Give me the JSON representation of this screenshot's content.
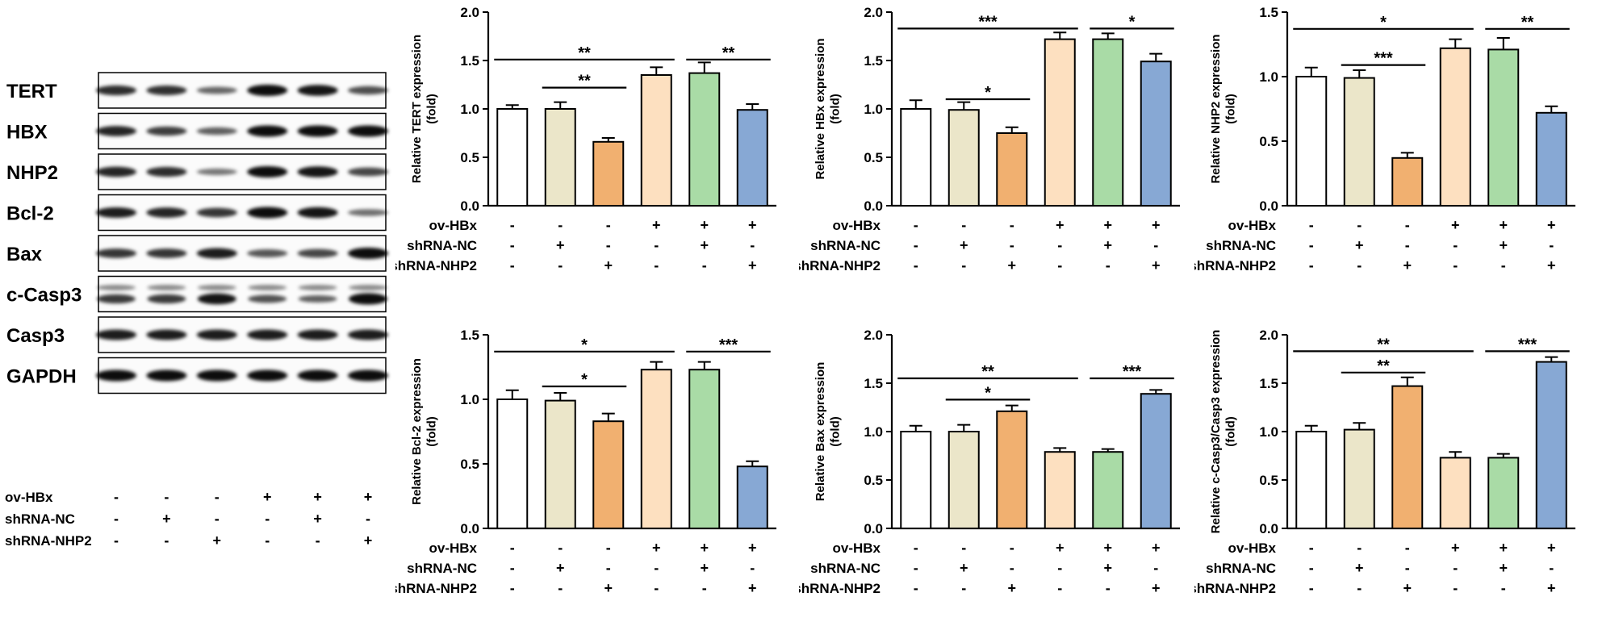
{
  "bar_colors": [
    "#ffffff",
    "#ebe6c9",
    "#f1b070",
    "#fde0c0",
    "#a9dba6",
    "#87a8d4"
  ],
  "treatments": {
    "rows": [
      {
        "label": "ov-HBx",
        "signs": [
          "-",
          "-",
          "-",
          "+",
          "+",
          "+"
        ]
      },
      {
        "label": "shRNA-NC",
        "signs": [
          "-",
          "+",
          "-",
          "-",
          "+",
          "-"
        ]
      },
      {
        "label": "shRNA-NHP2",
        "signs": [
          "-",
          "-",
          "+",
          "-",
          "-",
          "+"
        ]
      }
    ]
  },
  "blot": {
    "lanes": 6,
    "proteins": [
      {
        "name": "TERT",
        "intensity": [
          0.8,
          0.78,
          0.45,
          1.0,
          0.95,
          0.6
        ]
      },
      {
        "name": "HBX",
        "intensity": [
          0.85,
          0.7,
          0.5,
          1.0,
          1.0,
          1.0
        ]
      },
      {
        "name": "NHP2",
        "intensity": [
          0.85,
          0.8,
          0.35,
          1.0,
          0.95,
          0.65
        ]
      },
      {
        "name": "Bcl-2",
        "intensity": [
          0.9,
          0.85,
          0.75,
          1.0,
          0.95,
          0.4
        ]
      },
      {
        "name": "Bax",
        "intensity": [
          0.75,
          0.75,
          0.9,
          0.55,
          0.65,
          1.0
        ]
      },
      {
        "name": "c-Casp3",
        "intensity": [
          0.7,
          0.7,
          0.95,
          0.55,
          0.45,
          1.0
        ]
      },
      {
        "name": "Casp3",
        "intensity": [
          0.9,
          0.9,
          0.9,
          0.9,
          0.9,
          0.9
        ]
      },
      {
        "name": "GAPDH",
        "intensity": [
          1.0,
          1.0,
          1.0,
          1.0,
          1.0,
          1.0
        ]
      }
    ]
  },
  "chart_data": [
    {
      "type": "bar",
      "ylabel": "Relative TERT expression (fold)",
      "ylim": [
        0,
        2.0
      ],
      "yticks": [
        "0.0",
        "0.5",
        "1.0",
        "1.5",
        "2.0"
      ],
      "values": [
        1.0,
        1.0,
        0.66,
        1.35,
        1.37,
        0.99
      ],
      "errors": [
        0.04,
        0.07,
        0.04,
        0.08,
        0.11,
        0.06
      ],
      "significance": [
        {
          "from": 0,
          "to": 3,
          "y": 1.51,
          "label": "**"
        },
        {
          "from": 1,
          "to": 2,
          "y": 1.22,
          "label": "**"
        },
        {
          "from": 4,
          "to": 5,
          "y": 1.51,
          "label": "**"
        }
      ]
    },
    {
      "type": "bar",
      "ylabel": "Relative HBx expression (fold)",
      "ylim": [
        0,
        2.0
      ],
      "yticks": [
        "0.0",
        "0.5",
        "1.0",
        "1.5",
        "2.0"
      ],
      "values": [
        1.0,
        0.99,
        0.75,
        1.72,
        1.72,
        1.49
      ],
      "errors": [
        0.09,
        0.08,
        0.06,
        0.07,
        0.06,
        0.08
      ],
      "significance": [
        {
          "from": 0,
          "to": 3,
          "y": 1.83,
          "label": "***"
        },
        {
          "from": 1,
          "to": 2,
          "y": 1.1,
          "label": "*"
        },
        {
          "from": 4,
          "to": 5,
          "y": 1.83,
          "label": "*"
        }
      ]
    },
    {
      "type": "bar",
      "ylabel": "Relative NHP2 expression (fold)",
      "ylim": [
        0,
        1.5
      ],
      "yticks": [
        "0.0",
        "0.5",
        "1.0",
        "1.5"
      ],
      "values": [
        1.0,
        0.99,
        0.37,
        1.22,
        1.21,
        0.72
      ],
      "errors": [
        0.07,
        0.06,
        0.04,
        0.07,
        0.09,
        0.05
      ],
      "significance": [
        {
          "from": 0,
          "to": 3,
          "y": 1.37,
          "label": "*"
        },
        {
          "from": 1,
          "to": 2,
          "y": 1.09,
          "label": "***"
        },
        {
          "from": 4,
          "to": 5,
          "y": 1.37,
          "label": "**"
        }
      ]
    },
    {
      "type": "bar",
      "ylabel": "Relative Bcl-2 expression (fold)",
      "ylim": [
        0,
        1.5
      ],
      "yticks": [
        "0.0",
        "0.5",
        "1.0",
        "1.5"
      ],
      "values": [
        1.0,
        0.99,
        0.83,
        1.23,
        1.23,
        0.48
      ],
      "errors": [
        0.07,
        0.06,
        0.06,
        0.06,
        0.06,
        0.04
      ],
      "significance": [
        {
          "from": 0,
          "to": 3,
          "y": 1.37,
          "label": "*"
        },
        {
          "from": 1,
          "to": 2,
          "y": 1.1,
          "label": "*"
        },
        {
          "from": 4,
          "to": 5,
          "y": 1.37,
          "label": "***"
        }
      ]
    },
    {
      "type": "bar",
      "ylabel": "Relative Bax expression (fold)",
      "ylim": [
        0,
        2.0
      ],
      "yticks": [
        "0.0",
        "0.5",
        "1.0",
        "1.5",
        "2.0"
      ],
      "values": [
        1.0,
        1.0,
        1.21,
        0.79,
        0.79,
        1.39
      ],
      "errors": [
        0.06,
        0.07,
        0.06,
        0.04,
        0.03,
        0.04
      ],
      "significance": [
        {
          "from": 0,
          "to": 3,
          "y": 1.55,
          "label": "**"
        },
        {
          "from": 1,
          "to": 2,
          "y": 1.33,
          "label": "*"
        },
        {
          "from": 4,
          "to": 5,
          "y": 1.55,
          "label": "***"
        }
      ]
    },
    {
      "type": "bar",
      "ylabel": "Relative c-Casp3/Casp3 expression (fold)",
      "ylim": [
        0,
        2.0
      ],
      "yticks": [
        "0.0",
        "0.5",
        "1.0",
        "1.5",
        "2.0"
      ],
      "values": [
        1.0,
        1.02,
        1.47,
        0.73,
        0.73,
        1.72
      ],
      "errors": [
        0.06,
        0.07,
        0.09,
        0.06,
        0.04,
        0.05
      ],
      "significance": [
        {
          "from": 0,
          "to": 3,
          "y": 1.83,
          "label": "**"
        },
        {
          "from": 1,
          "to": 2,
          "y": 1.61,
          "label": "**"
        },
        {
          "from": 4,
          "to": 5,
          "y": 1.83,
          "label": "***"
        }
      ]
    }
  ]
}
